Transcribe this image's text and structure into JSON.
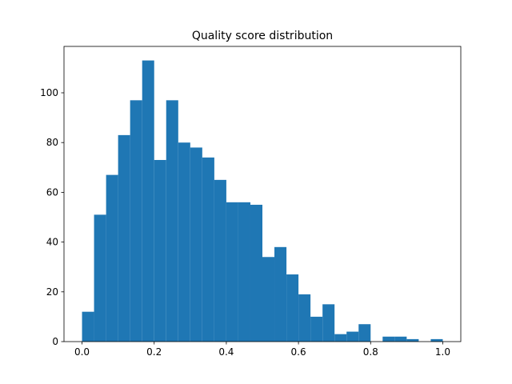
{
  "chart_data": {
    "type": "histogram",
    "title": "Quality score distribution",
    "bins": [
      0.0,
      0.0333,
      0.0667,
      0.1,
      0.1333,
      0.1667,
      0.2,
      0.2333,
      0.2667,
      0.3,
      0.3333,
      0.3667,
      0.4,
      0.4333,
      0.4667,
      0.5,
      0.5333,
      0.5667,
      0.6,
      0.6333,
      0.6667,
      0.7,
      0.7333,
      0.7667,
      0.8,
      0.8333,
      0.8667,
      0.9,
      0.9333,
      0.9667,
      1.0
    ],
    "values": [
      12,
      51,
      67,
      83,
      97,
      113,
      73,
      97,
      80,
      78,
      74,
      65,
      56,
      56,
      55,
      34,
      38,
      27,
      19,
      10,
      15,
      3,
      4,
      7,
      0,
      2,
      2,
      1,
      0,
      1
    ],
    "color": "#1f77b4",
    "xlim": [
      -0.05,
      1.05
    ],
    "xticks": [
      {
        "value": 0,
        "label": "0.0"
      },
      0.2,
      0.4,
      0.6,
      0.8,
      {
        "value": 1,
        "label": "1.0"
      }
    ],
    "ylim": [
      0,
      118.65
    ],
    "yticks": [
      0,
      20,
      40,
      60,
      80,
      100
    ]
  }
}
